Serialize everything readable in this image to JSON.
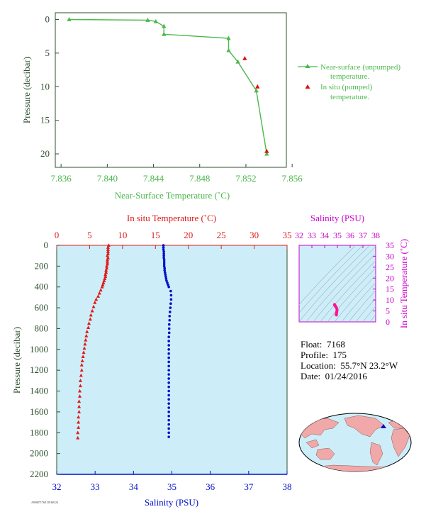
{
  "colors": {
    "near_surface": "#4cb84c",
    "insitu_pumped": "#e01010",
    "temp_red": "#e01a1a",
    "salinity_blue": "#0010c8",
    "salinity_magenta": "#cc00cc",
    "panel_bg": "#cdeef8",
    "axis_dark": "#2f4f2f"
  },
  "info": {
    "float_label": "Float:",
    "float_value": "7168",
    "profile_label": "Profile:",
    "profile_value": "175",
    "location_label": "Location:",
    "location_value": "55.7°N  23.2°W",
    "date_label": "Date:",
    "date_value": "01/24/2016"
  },
  "footer_code": "A000071768 20160124",
  "chart_data": [
    {
      "id": "near-surface",
      "type": "line",
      "xlabel": "Near-Surface Temperature (˚C)",
      "ylabel": "Pressure (decibar)",
      "xlim": [
        7.8355,
        7.8555
      ],
      "ylim": [
        22,
        -1
      ],
      "xticks": [
        "7.836",
        "7.840",
        "7.844",
        "7.848",
        "7.852",
        "7.856"
      ],
      "yticks": [
        "0",
        "5",
        "10",
        "15",
        "20"
      ],
      "legend_position": "right",
      "series": [
        {
          "name": "Near-surface (unpumped) temperature.",
          "marker": "triangle",
          "points": [
            [
              7.8367,
              0.0
            ],
            [
              7.8435,
              0.1
            ],
            [
              7.8442,
              0.3
            ],
            [
              7.8449,
              1.0
            ],
            [
              7.8449,
              2.2
            ],
            [
              7.8505,
              2.8
            ],
            [
              7.8505,
              4.6
            ],
            [
              7.8513,
              6.3
            ],
            [
              7.8529,
              10.6
            ],
            [
              7.8538,
              20.0
            ]
          ]
        },
        {
          "name": "In situ (pumped) temperature.",
          "marker": "triangle",
          "points": [
            [
              7.8519,
              5.8
            ],
            [
              7.853,
              10.0
            ],
            [
              7.8538,
              19.6
            ]
          ]
        }
      ]
    },
    {
      "id": "profile",
      "type": "scatter",
      "ylabel": "Pressure (decibar)",
      "ylim": [
        2200,
        0
      ],
      "yticks": [
        "0",
        "200",
        "400",
        "600",
        "800",
        "1000",
        "1200",
        "1400",
        "1600",
        "1800",
        "2000",
        "2200"
      ],
      "top_axis": {
        "label": "In situ Temperature (˚C)",
        "range": [
          0,
          35
        ],
        "ticks": [
          "0",
          "5",
          "10",
          "15",
          "20",
          "25",
          "30",
          "35"
        ]
      },
      "bottom_axis": {
        "label": "Salinity (PSU)",
        "range": [
          32,
          38
        ],
        "ticks": [
          "32",
          "33",
          "34",
          "35",
          "36",
          "37",
          "38"
        ]
      },
      "temperature": [
        [
          7.9,
          0
        ],
        [
          7.8,
          20
        ],
        [
          7.8,
          40
        ],
        [
          7.8,
          60
        ],
        [
          7.8,
          80
        ],
        [
          7.7,
          100
        ],
        [
          7.8,
          120
        ],
        [
          7.7,
          140
        ],
        [
          7.7,
          160
        ],
        [
          7.7,
          180
        ],
        [
          7.6,
          200
        ],
        [
          7.6,
          220
        ],
        [
          7.5,
          240
        ],
        [
          7.5,
          260
        ],
        [
          7.4,
          280
        ],
        [
          7.4,
          300
        ],
        [
          7.3,
          320
        ],
        [
          7.2,
          340
        ],
        [
          7.1,
          360
        ],
        [
          7.0,
          380
        ],
        [
          6.9,
          400
        ],
        [
          6.7,
          430
        ],
        [
          6.5,
          460
        ],
        [
          6.3,
          490
        ],
        [
          6.0,
          520
        ],
        [
          5.8,
          550
        ],
        [
          5.6,
          590
        ],
        [
          5.4,
          630
        ],
        [
          5.2,
          670
        ],
        [
          5.1,
          710
        ],
        [
          4.9,
          750
        ],
        [
          4.8,
          790
        ],
        [
          4.6,
          830
        ],
        [
          4.5,
          870
        ],
        [
          4.4,
          910
        ],
        [
          4.3,
          950
        ],
        [
          4.2,
          990
        ],
        [
          4.1,
          1030
        ],
        [
          4.0,
          1070
        ],
        [
          3.9,
          1110
        ],
        [
          3.8,
          1150
        ],
        [
          3.8,
          1200
        ],
        [
          3.7,
          1250
        ],
        [
          3.6,
          1300
        ],
        [
          3.6,
          1350
        ],
        [
          3.5,
          1400
        ],
        [
          3.5,
          1450
        ],
        [
          3.4,
          1500
        ],
        [
          3.4,
          1550
        ],
        [
          3.4,
          1600
        ],
        [
          3.3,
          1650
        ],
        [
          3.3,
          1700
        ],
        [
          3.3,
          1750
        ],
        [
          3.2,
          1800
        ],
        [
          3.2,
          1850
        ]
      ],
      "salinity": [
        [
          34.78,
          0
        ],
        [
          34.78,
          20
        ],
        [
          34.78,
          40
        ],
        [
          34.79,
          60
        ],
        [
          34.79,
          80
        ],
        [
          34.79,
          100
        ],
        [
          34.79,
          120
        ],
        [
          34.8,
          140
        ],
        [
          34.8,
          160
        ],
        [
          34.8,
          180
        ],
        [
          34.8,
          200
        ],
        [
          34.81,
          220
        ],
        [
          34.81,
          240
        ],
        [
          34.82,
          260
        ],
        [
          34.83,
          280
        ],
        [
          34.84,
          300
        ],
        [
          34.85,
          320
        ],
        [
          34.86,
          340
        ],
        [
          34.88,
          360
        ],
        [
          34.9,
          380
        ],
        [
          34.92,
          400
        ],
        [
          34.97,
          440
        ],
        [
          34.98,
          480
        ],
        [
          34.98,
          520
        ],
        [
          34.97,
          560
        ],
        [
          34.96,
          600
        ],
        [
          34.95,
          640
        ],
        [
          34.94,
          680
        ],
        [
          34.94,
          720
        ],
        [
          34.93,
          760
        ],
        [
          34.93,
          800
        ],
        [
          34.93,
          840
        ],
        [
          34.92,
          880
        ],
        [
          34.92,
          920
        ],
        [
          34.92,
          960
        ],
        [
          34.92,
          1000
        ],
        [
          34.92,
          1040
        ],
        [
          34.92,
          1080
        ],
        [
          34.92,
          1120
        ],
        [
          34.92,
          1160
        ],
        [
          34.92,
          1200
        ],
        [
          34.92,
          1240
        ],
        [
          34.92,
          1280
        ],
        [
          34.92,
          1320
        ],
        [
          34.92,
          1360
        ],
        [
          34.92,
          1400
        ],
        [
          34.92,
          1440
        ],
        [
          34.92,
          1480
        ],
        [
          34.92,
          1520
        ],
        [
          34.92,
          1560
        ],
        [
          34.92,
          1600
        ],
        [
          34.92,
          1640
        ],
        [
          34.92,
          1680
        ],
        [
          34.92,
          1720
        ],
        [
          34.92,
          1760
        ],
        [
          34.92,
          1800
        ],
        [
          34.92,
          1840
        ]
      ]
    },
    {
      "id": "ts-diagram",
      "type": "scatter",
      "top_axis": {
        "label": "Salinity (PSU)",
        "range": [
          32,
          38
        ],
        "ticks": [
          "32",
          "33",
          "34",
          "35",
          "36",
          "37",
          "38"
        ]
      },
      "right_axis": {
        "label": "In situ Temperature (˚C)",
        "range": [
          0,
          35
        ],
        "ticks": [
          "0",
          "5",
          "10",
          "15",
          "20",
          "25",
          "30",
          "35"
        ]
      },
      "points": [
        [
          34.78,
          7.9
        ],
        [
          34.8,
          7.6
        ],
        [
          34.84,
          7.2
        ],
        [
          34.92,
          6.5
        ],
        [
          34.97,
          5.5
        ],
        [
          34.95,
          4.6
        ],
        [
          34.93,
          4.0
        ],
        [
          34.92,
          3.6
        ],
        [
          34.92,
          3.2
        ]
      ]
    }
  ]
}
